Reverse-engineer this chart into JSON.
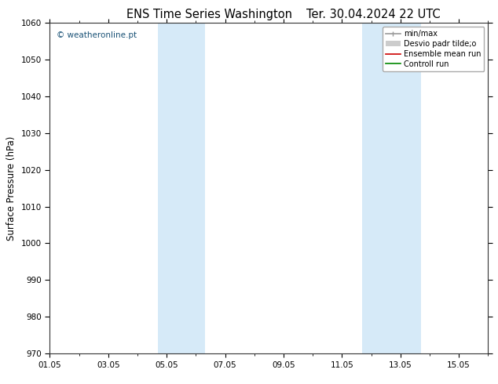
{
  "title_left": "ENS Time Series Washington",
  "title_right": "Ter. 30.04.2024 22 UTC",
  "ylabel": "Surface Pressure (hPa)",
  "ylim": [
    970,
    1060
  ],
  "yticks": [
    970,
    980,
    990,
    1000,
    1010,
    1020,
    1030,
    1040,
    1050,
    1060
  ],
  "xlim": [
    0,
    15
  ],
  "xtick_labels": [
    "01.05",
    "03.05",
    "05.05",
    "07.05",
    "09.05",
    "11.05",
    "13.05",
    "15.05"
  ],
  "xtick_positions": [
    0,
    2,
    4,
    6,
    8,
    10,
    12,
    14
  ],
  "shaded_bands": [
    {
      "xmin": 3.7,
      "xmax": 5.3,
      "color": "#d6eaf8"
    },
    {
      "xmin": 10.7,
      "xmax": 12.7,
      "color": "#d6eaf8"
    }
  ],
  "watermark": "© weatheronline.pt",
  "watermark_color": "#1a5276",
  "legend_labels": [
    "min/max",
    "Desvio padr tilde;o",
    "Ensemble mean run",
    "Controll run"
  ],
  "legend_colors": [
    "#999999",
    "#cccccc",
    "#cc0000",
    "#008800"
  ],
  "bg_color": "#ffffff",
  "tick_label_fontsize": 7.5,
  "axis_label_fontsize": 8.5,
  "title_fontsize": 10.5
}
